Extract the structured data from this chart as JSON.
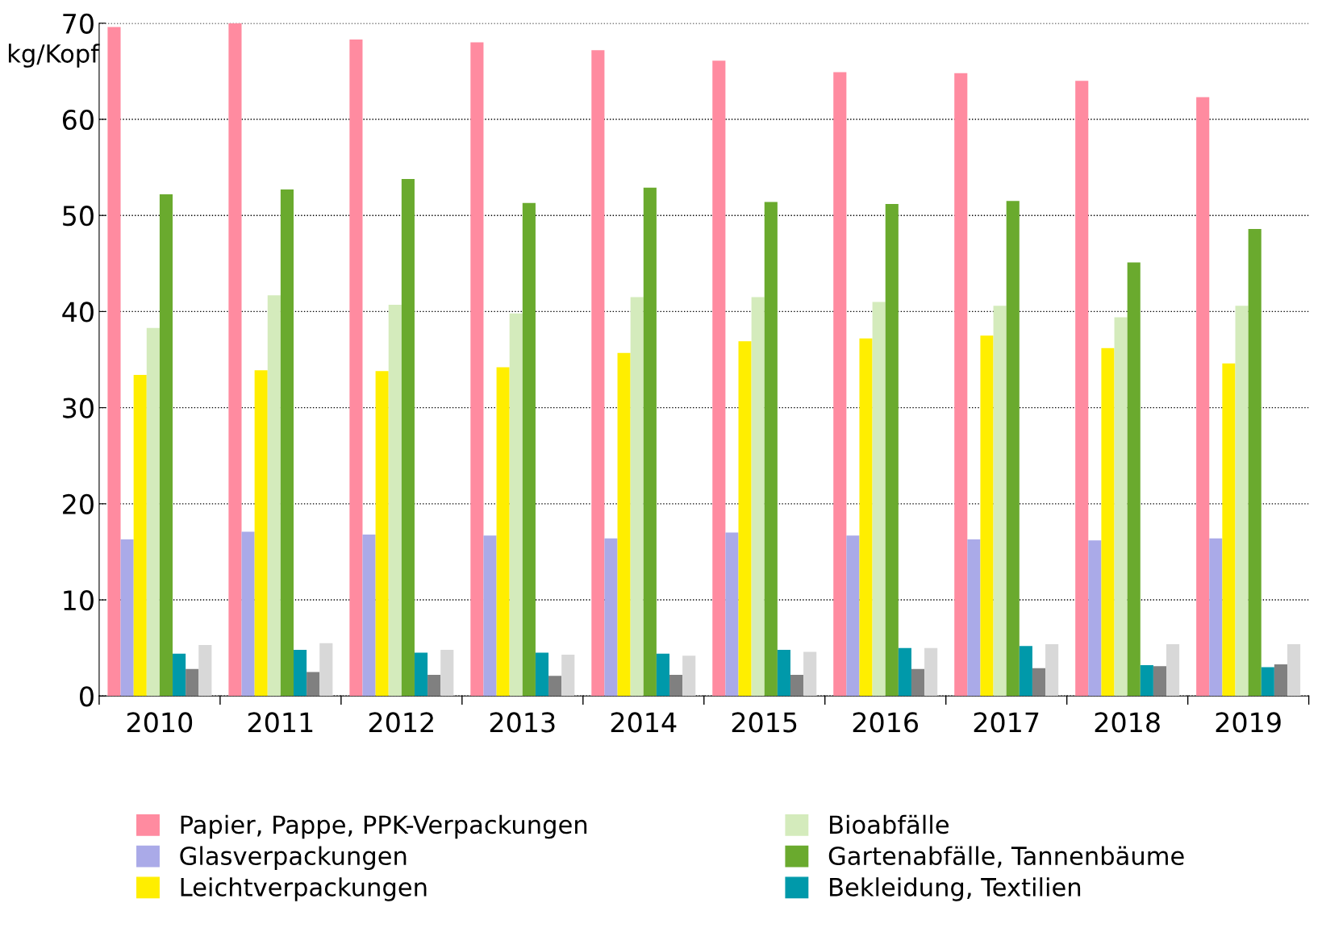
{
  "chart_data": {
    "type": "bar",
    "ylabel": "kg/Kopf",
    "categories": [
      "2010",
      "2011",
      "2012",
      "2013",
      "2014",
      "2015",
      "2016",
      "2017",
      "2018",
      "2019"
    ],
    "series": [
      {
        "name": "Papier, Pappe, PPK-Verpackungen",
        "color": "#ff8ba0",
        "values": [
          69.6,
          70,
          68.3,
          68.0,
          67.2,
          66.1,
          64.9,
          64.8,
          64.0,
          62.3
        ]
      },
      {
        "name": "Glasverpackungen",
        "color": "#aaaae8",
        "values": [
          16.3,
          17.1,
          16.8,
          16.7,
          16.4,
          17.0,
          16.7,
          16.3,
          16.2,
          16.4
        ]
      },
      {
        "name": "Leichtverpackungen",
        "color": "#ffee00",
        "values": [
          33.4,
          33.9,
          33.8,
          34.2,
          35.7,
          36.9,
          37.2,
          37.5,
          36.2,
          34.6
        ]
      },
      {
        "name": "Bioabfälle",
        "color": "#d4ebbc",
        "values": [
          38.3,
          41.7,
          40.7,
          39.8,
          41.5,
          41.5,
          41.0,
          40.6,
          39.4,
          40.6
        ]
      },
      {
        "name": "Gartenabfälle, Tannenbäume",
        "color": "#6aaa2e",
        "values": [
          52.2,
          52.7,
          53.8,
          51.3,
          52.9,
          51.4,
          51.2,
          51.5,
          45.1,
          48.6
        ]
      },
      {
        "name": "Bekleidung, Textilien",
        "color": "#0099aa",
        "values": [
          4.4,
          4.8,
          4.5,
          4.5,
          4.4,
          4.8,
          5.0,
          5.2,
          3.2,
          3.0
        ]
      },
      {
        "color": "#808080",
        "values": [
          2.8,
          2.5,
          2.2,
          2.1,
          2.2,
          2.2,
          2.8,
          2.9,
          3.1,
          3.3
        ]
      },
      {
        "color": "#d8d8d8",
        "values": [
          5.3,
          5.5,
          4.8,
          4.3,
          4.2,
          4.6,
          5.0,
          5.4,
          5.4,
          5.4
        ]
      }
    ],
    "ylim": [
      0,
      70
    ],
    "yticks": [
      0,
      10,
      20,
      30,
      40,
      50,
      60,
      70
    ],
    "grid": "y",
    "legend": "bottom"
  }
}
